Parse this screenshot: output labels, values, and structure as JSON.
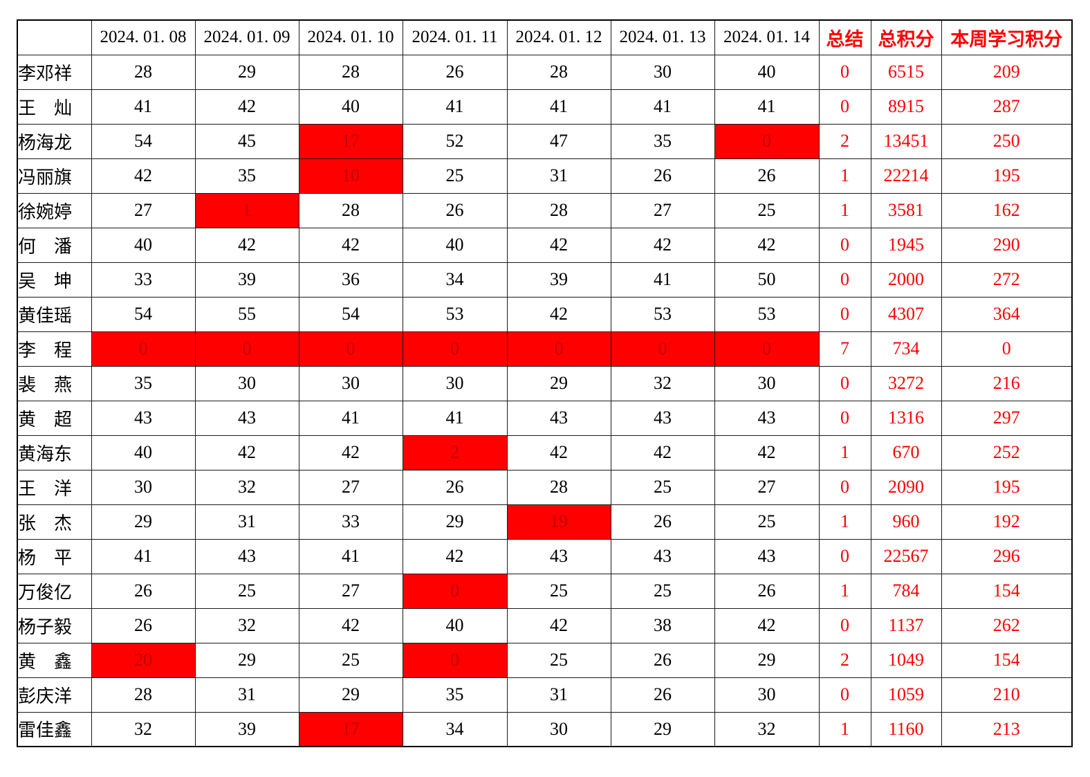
{
  "colors": {
    "summary_header_text": "#ff0000",
    "summary_value_text": "#ff0000",
    "highlight_cell_bg": "#ff0000",
    "highlight_cell_text": "#c00000",
    "regular_text": "#000000",
    "grid_line": "#000000"
  },
  "table": {
    "columns": [
      "",
      "2024. 01. 08",
      "2024. 01. 09",
      "2024. 01. 10",
      "2024. 01. 11",
      "2024. 01. 12",
      "2024. 01. 13",
      "2024. 01. 14",
      "总结",
      "总积分",
      "本周学习积分"
    ],
    "rows": [
      {
        "name": "李邓祥",
        "days": [
          28,
          29,
          28,
          26,
          28,
          30,
          40
        ],
        "red": [],
        "summary": 0,
        "total": 6515,
        "week": 209
      },
      {
        "name": "王　灿",
        "days": [
          41,
          42,
          40,
          41,
          41,
          41,
          41
        ],
        "red": [],
        "summary": 0,
        "total": 8915,
        "week": 287
      },
      {
        "name": "杨海龙",
        "days": [
          54,
          45,
          17,
          52,
          47,
          35,
          0
        ],
        "red": [
          2,
          6
        ],
        "summary": 2,
        "total": 13451,
        "week": 250
      },
      {
        "name": "冯丽旗",
        "days": [
          42,
          35,
          10,
          25,
          31,
          26,
          26
        ],
        "red": [
          2
        ],
        "summary": 1,
        "total": 22214,
        "week": 195
      },
      {
        "name": "徐婉婷",
        "days": [
          27,
          1,
          28,
          26,
          28,
          27,
          25
        ],
        "red": [
          1
        ],
        "summary": 1,
        "total": 3581,
        "week": 162
      },
      {
        "name": "何　潘",
        "days": [
          40,
          42,
          42,
          40,
          42,
          42,
          42
        ],
        "red": [],
        "summary": 0,
        "total": 1945,
        "week": 290
      },
      {
        "name": "吴　坤",
        "days": [
          33,
          39,
          36,
          34,
          39,
          41,
          50
        ],
        "red": [],
        "summary": 0,
        "total": 2000,
        "week": 272
      },
      {
        "name": "黄佳瑶",
        "days": [
          54,
          55,
          54,
          53,
          42,
          53,
          53
        ],
        "red": [],
        "summary": 0,
        "total": 4307,
        "week": 364
      },
      {
        "name": "李　程",
        "days": [
          0,
          0,
          0,
          0,
          0,
          0,
          0
        ],
        "red": [
          0,
          1,
          2,
          3,
          4,
          5,
          6
        ],
        "summary": 7,
        "total": 734,
        "week": 0
      },
      {
        "name": "裴　燕",
        "days": [
          35,
          30,
          30,
          30,
          29,
          32,
          30
        ],
        "red": [],
        "summary": 0,
        "total": 3272,
        "week": 216
      },
      {
        "name": "黄　超",
        "days": [
          43,
          43,
          41,
          41,
          43,
          43,
          43
        ],
        "red": [],
        "summary": 0,
        "total": 1316,
        "week": 297
      },
      {
        "name": "黄海东",
        "days": [
          40,
          42,
          42,
          2,
          42,
          42,
          42
        ],
        "red": [
          3
        ],
        "summary": 1,
        "total": 670,
        "week": 252
      },
      {
        "name": "王　洋",
        "days": [
          30,
          32,
          27,
          26,
          28,
          25,
          27
        ],
        "red": [],
        "summary": 0,
        "total": 2090,
        "week": 195
      },
      {
        "name": "张　杰",
        "days": [
          29,
          31,
          33,
          29,
          19,
          26,
          25
        ],
        "red": [
          4
        ],
        "summary": 1,
        "total": 960,
        "week": 192
      },
      {
        "name": "杨　平",
        "days": [
          41,
          43,
          41,
          42,
          43,
          43,
          43
        ],
        "red": [],
        "summary": 0,
        "total": 22567,
        "week": 296
      },
      {
        "name": "万俊亿",
        "days": [
          26,
          25,
          27,
          0,
          25,
          25,
          26
        ],
        "red": [
          3
        ],
        "summary": 1,
        "total": 784,
        "week": 154
      },
      {
        "name": "杨子毅",
        "days": [
          26,
          32,
          42,
          40,
          42,
          38,
          42
        ],
        "red": [],
        "summary": 0,
        "total": 1137,
        "week": 262
      },
      {
        "name": "黄　鑫",
        "days": [
          20,
          29,
          25,
          0,
          25,
          26,
          29
        ],
        "red": [
          0,
          3
        ],
        "summary": 2,
        "total": 1049,
        "week": 154
      },
      {
        "name": "彭庆洋",
        "days": [
          28,
          31,
          29,
          35,
          31,
          26,
          30
        ],
        "red": [],
        "summary": 0,
        "total": 1059,
        "week": 210
      },
      {
        "name": "雷佳鑫",
        "days": [
          32,
          39,
          17,
          34,
          30,
          29,
          32
        ],
        "red": [
          2
        ],
        "summary": 1,
        "total": 1160,
        "week": 213
      }
    ]
  }
}
